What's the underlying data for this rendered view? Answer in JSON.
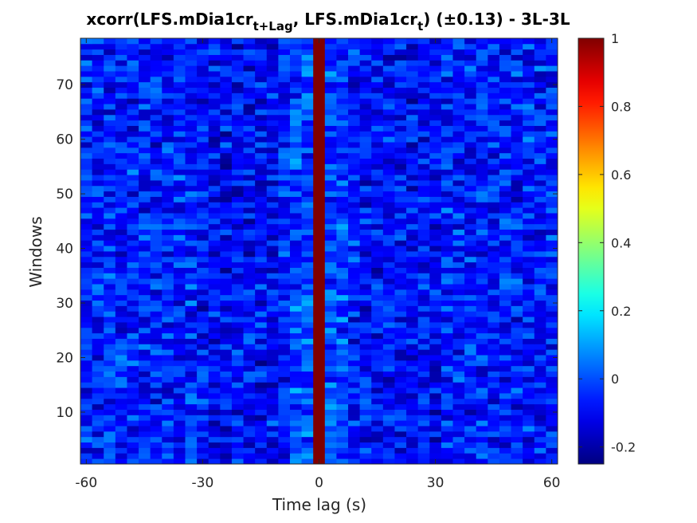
{
  "chart_data": {
    "type": "heatmap",
    "title": {
      "prefix": "xcorr(LFS.mDia1cr",
      "sub1": "t+Lag",
      "middle": ", LFS.mDia1cr",
      "sub2": "t",
      "suffix": ")  (±0.13) - 3L-3L"
    },
    "xlabel": "Time lag (s)",
    "ylabel": "Windows",
    "x_range": [
      -61.5,
      61.5
    ],
    "y_range": [
      0.5,
      78.5
    ],
    "lag_step_s": 3,
    "x_ticks": [
      -60,
      -30,
      0,
      30,
      60
    ],
    "x_tick_labels": [
      "-60",
      "-30",
      "0",
      "30",
      "60"
    ],
    "y_ticks": [
      10,
      20,
      30,
      40,
      50,
      60,
      70
    ],
    "y_tick_labels": [
      "10",
      "20",
      "30",
      "40",
      "50",
      "60",
      "70"
    ],
    "colorbar": {
      "colormap": "jet",
      "clim": [
        -0.25,
        1
      ],
      "ticks": [
        -0.2,
        0,
        0.2,
        0.4,
        0.6,
        0.8,
        1
      ],
      "tick_labels": [
        "-0.2",
        "0",
        "0.2",
        "0.4",
        "0.6",
        "0.8",
        "1"
      ]
    },
    "zero_lag_value": 1,
    "typical_range": [
      -0.2,
      0.2
    ],
    "grid": false
  }
}
